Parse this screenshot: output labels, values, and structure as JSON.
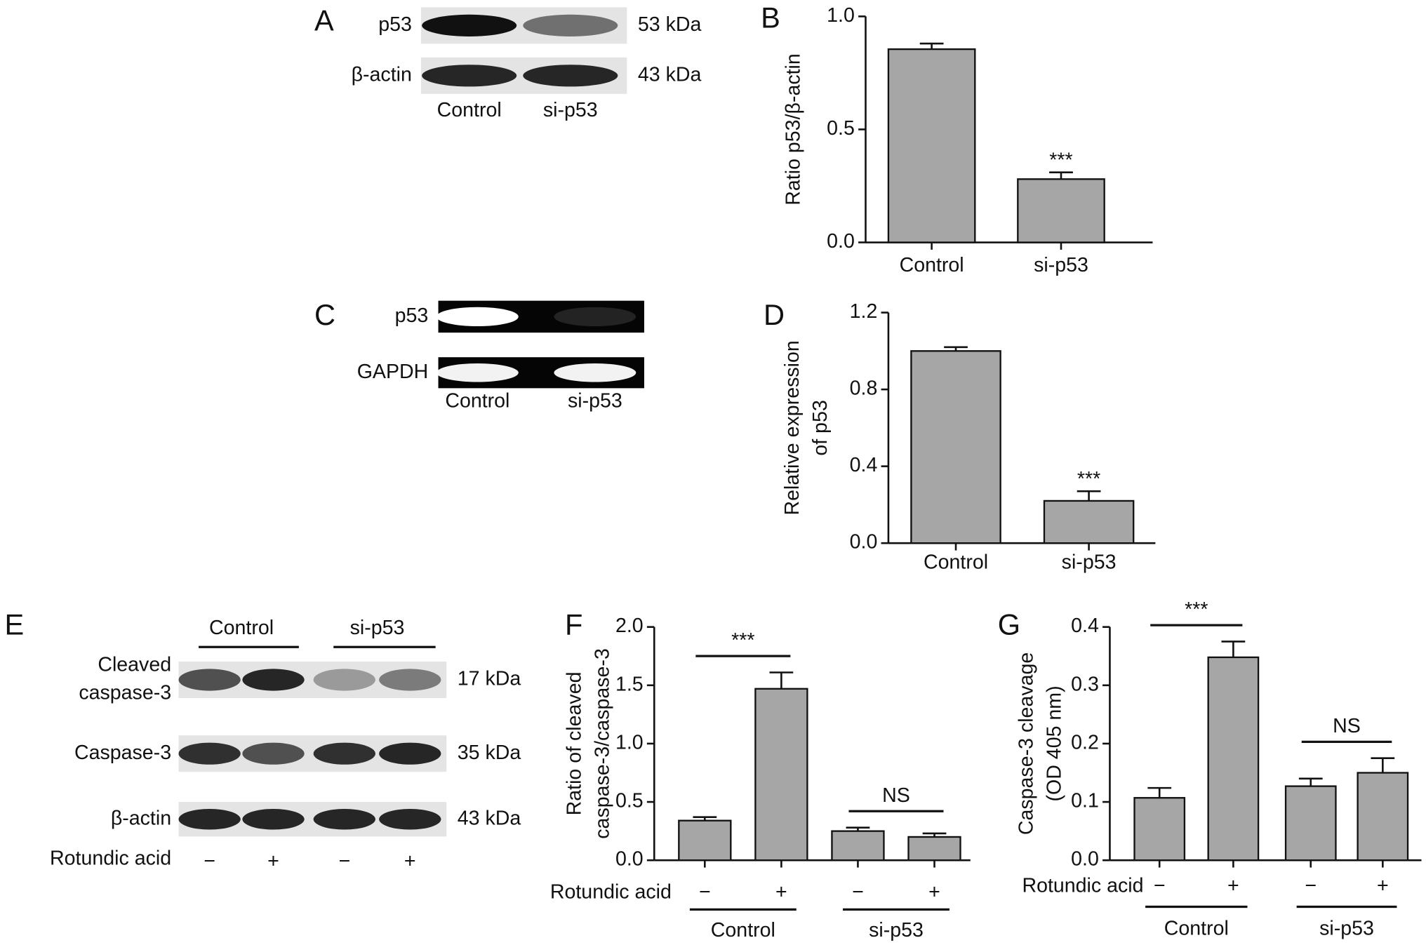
{
  "blots": [
    {
      "panel": "A",
      "rows": [
        {
          "label": [
            "p53"
          ],
          "size": "53 kDa"
        },
        {
          "label": [
            "β-actin"
          ],
          "size": "43 kDa"
        }
      ],
      "lanes": [
        "Control",
        "si-p53"
      ]
    },
    {
      "panel": "C",
      "rows": [
        {
          "label": [
            "p53"
          ]
        },
        {
          "label": [
            "GAPDH"
          ]
        }
      ],
      "lanes": [
        "Control",
        "si-p53"
      ]
    },
    {
      "panel": "E",
      "groups": [
        "Control",
        "si-p53"
      ],
      "rows": [
        {
          "label": [
            "Cleaved",
            "caspase-3"
          ],
          "size": "17 kDa"
        },
        {
          "label": [
            "Caspase-3"
          ],
          "size": "35 kDa"
        },
        {
          "label": [
            "β-actin"
          ],
          "size": "43 kDa"
        }
      ],
      "treatment": {
        "label": "Rotundic acid",
        "values": [
          "−",
          "+",
          "−",
          "+"
        ]
      }
    }
  ],
  "chart_data": [
    {
      "type": "bar",
      "panel": "B",
      "ylabel": [
        "Ratio p53/β-actin"
      ],
      "categories": [
        "Control",
        "si-p53"
      ],
      "values": [
        0.855,
        0.28
      ],
      "errors": [
        0.025,
        0.03
      ],
      "color": "#a6a6a6",
      "ylim": [
        0,
        1
      ],
      "yticks": [
        {
          "value": 0,
          "label": "0.0"
        },
        {
          "value": 0.5,
          "label": "0.5"
        },
        {
          "value": 1,
          "label": "1.0"
        }
      ],
      "annotations": [
        {
          "text": "***",
          "bars": [
            1
          ]
        }
      ]
    },
    {
      "type": "bar",
      "panel": "D",
      "ylabel": [
        "Relative expression",
        "of p53"
      ],
      "categories": [
        "Control",
        "si-p53"
      ],
      "values": [
        1.0,
        0.22
      ],
      "errors": [
        0.02,
        0.05
      ],
      "color": "#a6a6a6",
      "ylim": [
        0,
        1.2
      ],
      "yticks": [
        {
          "value": 0,
          "label": "0.0"
        },
        0.4,
        0.8,
        1.2
      ],
      "annotations": [
        {
          "text": "***",
          "bars": [
            1
          ]
        }
      ]
    },
    {
      "type": "bar",
      "panel": "F",
      "ylabel": [
        "Ratio of cleaved",
        "caspase-3/caspase-3"
      ],
      "treatment_label": "Rotundic acid",
      "categories": [
        "−",
        "+",
        "−",
        "+"
      ],
      "groups": [
        "Control",
        "si-p53"
      ],
      "values": [
        0.34,
        1.47,
        0.25,
        0.2
      ],
      "errors": [
        0.03,
        0.14,
        0.03,
        0.03
      ],
      "color": "#a6a6a6",
      "ylim": [
        0,
        2
      ],
      "yticks": [
        {
          "value": 0,
          "label": "0.0"
        },
        0.5,
        {
          "value": 1,
          "label": "1.0"
        },
        1.5,
        {
          "value": 2,
          "label": "2.0"
        }
      ],
      "annotations": [
        {
          "text": "***",
          "bars": [
            0,
            1
          ]
        },
        {
          "text": "NS",
          "bars": [
            2,
            3
          ]
        }
      ]
    },
    {
      "type": "bar",
      "panel": "G",
      "ylabel": [
        "Caspase-3 cleavage",
        "(OD 405 nm)"
      ],
      "treatment_label": "Rotundic acid",
      "categories": [
        "−",
        "+",
        "−",
        "+"
      ],
      "groups": [
        "Control",
        "si-p53"
      ],
      "values": [
        0.107,
        0.348,
        0.127,
        0.15
      ],
      "errors": [
        0.017,
        0.027,
        0.013,
        0.025
      ],
      "color": "#a6a6a6",
      "ylim": [
        0,
        0.4
      ],
      "yticks": [
        {
          "value": 0,
          "label": "0.0"
        },
        0.1,
        0.2,
        0.3,
        0.4
      ],
      "annotations": [
        {
          "text": "***",
          "bars": [
            0,
            1
          ]
        },
        {
          "text": "NS",
          "bars": [
            2,
            3
          ]
        }
      ]
    }
  ]
}
